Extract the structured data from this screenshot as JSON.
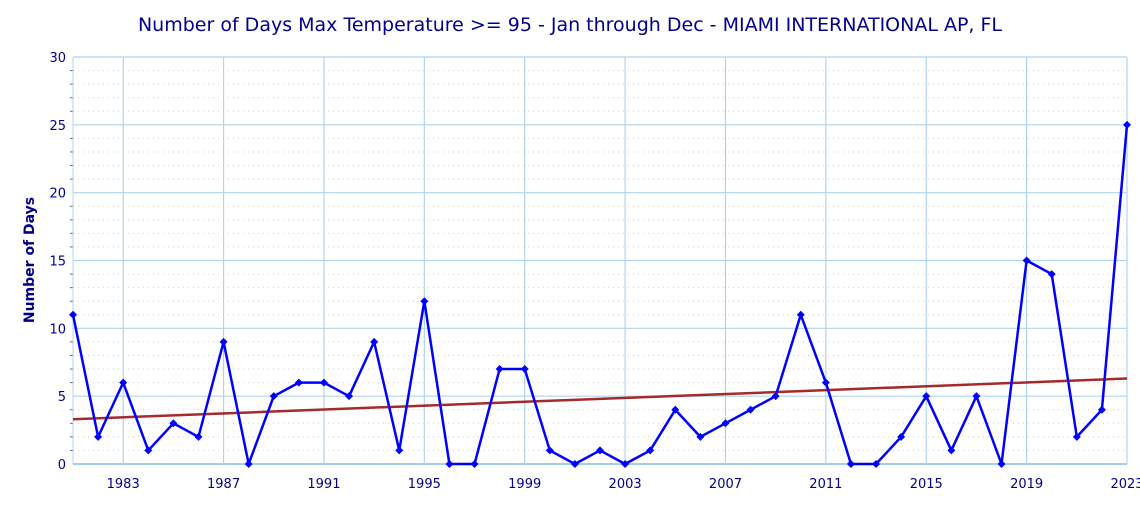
{
  "chart_data": {
    "type": "line",
    "title": "Number of Days Max Temperature >= 95 - Jan through Dec - MIAMI INTERNATIONAL AP, FL",
    "xlabel": "",
    "ylabel": "Number of Days",
    "xlim": [
      1981,
      2023
    ],
    "ylim": [
      0,
      30
    ],
    "x_ticks": [
      1983,
      1987,
      1991,
      1995,
      1999,
      2003,
      2007,
      2011,
      2015,
      2019,
      2023
    ],
    "y_ticks": [
      0,
      5,
      10,
      15,
      20,
      25,
      30
    ],
    "grid": true,
    "x": [
      1981,
      1982,
      1983,
      1984,
      1985,
      1986,
      1987,
      1988,
      1989,
      1990,
      1991,
      1992,
      1993,
      1994,
      1995,
      1996,
      1997,
      1998,
      1999,
      2000,
      2001,
      2002,
      2003,
      2004,
      2005,
      2006,
      2007,
      2008,
      2009,
      2010,
      2011,
      2012,
      2013,
      2014,
      2015,
      2016,
      2017,
      2018,
      2019,
      2020,
      2021,
      2022,
      2023
    ],
    "series": [
      {
        "values": [
          11,
          2,
          6,
          1,
          3,
          2,
          9,
          0,
          5,
          6,
          6,
          5,
          9,
          1,
          12,
          0,
          0,
          7,
          7,
          1,
          0,
          1,
          0,
          1,
          4,
          2,
          3,
          4,
          5,
          11,
          6,
          0,
          0,
          2,
          5,
          1,
          5,
          0,
          15,
          14,
          2,
          4,
          25
        ],
        "color": "#0000ff",
        "marker": "diamond"
      }
    ],
    "trend": {
      "x": [
        1981,
        2023
      ],
      "y": [
        3.3,
        6.3
      ],
      "color": "#a52a2a"
    }
  }
}
